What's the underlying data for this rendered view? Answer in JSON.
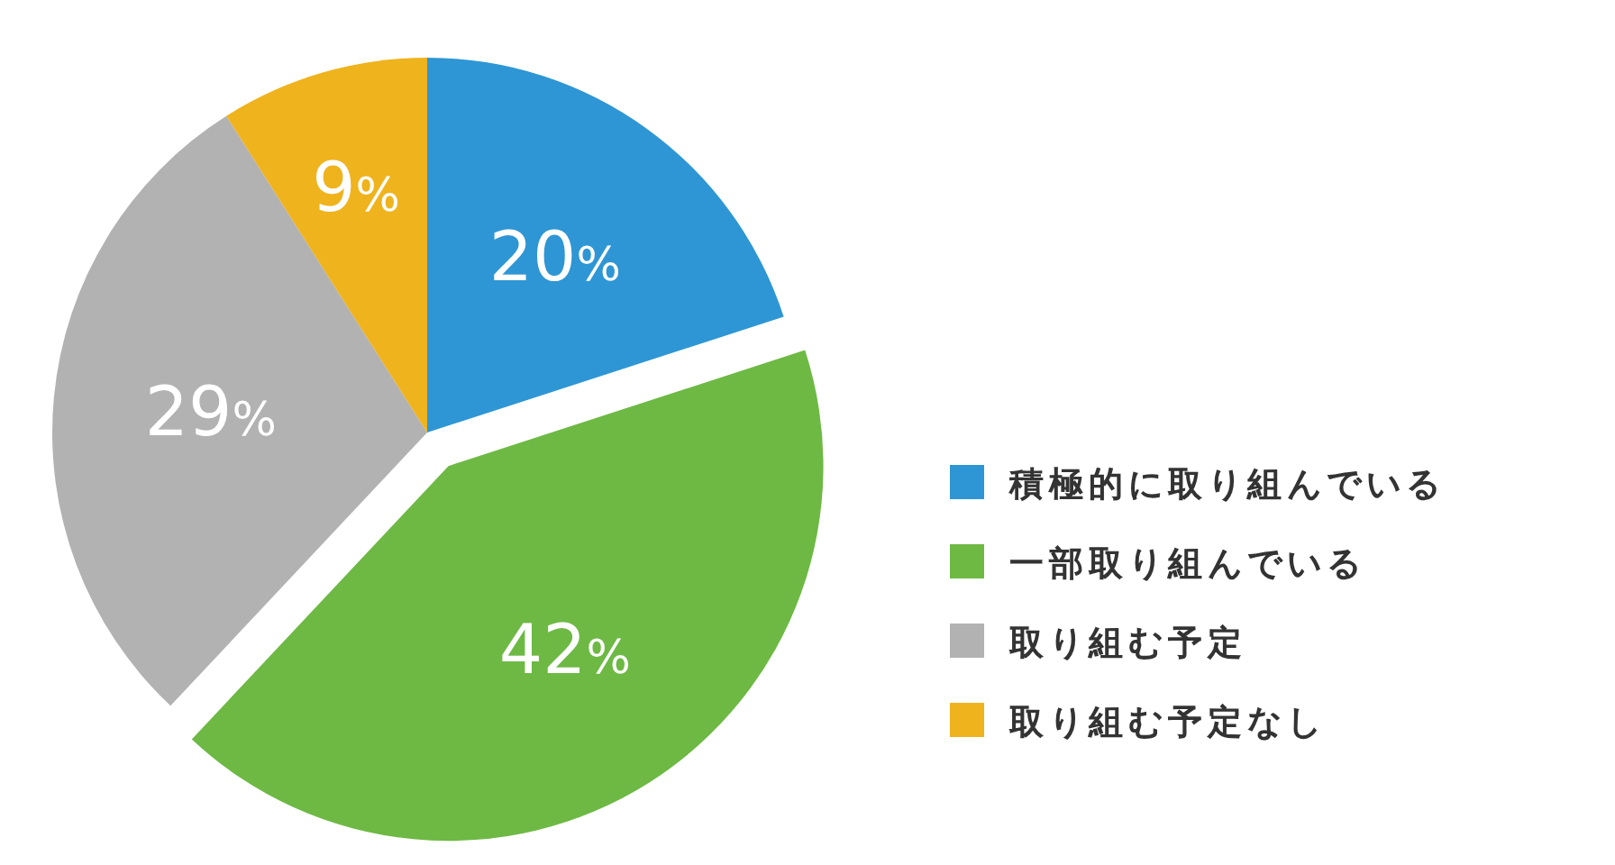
{
  "chart_data": {
    "type": "pie",
    "categories": [
      "積極的に取り組んでいる",
      "一部取り組んでいる",
      "取り組む予定",
      "取り組む予定なし"
    ],
    "values": [
      20,
      42,
      29,
      9
    ],
    "colors": [
      "#2e96d4",
      "#6db944",
      "#b2b2b2",
      "#efb31d"
    ],
    "value_labels": [
      "20%",
      "42%",
      "29%",
      "9%"
    ],
    "legend": "right"
  }
}
